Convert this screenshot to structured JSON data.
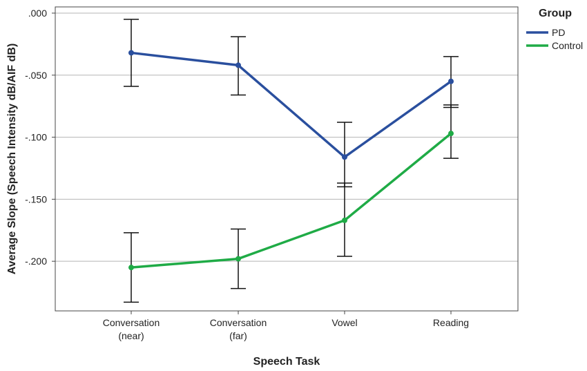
{
  "chart_data": {
    "type": "line",
    "title": "",
    "xlabel": "Speech Task",
    "ylabel": "Average Slope (Speech Intensity dB/AIF dB)",
    "categories": [
      [
        "Conversation",
        "(near)"
      ],
      [
        "Conversation",
        "(far)"
      ],
      [
        "Vowel"
      ],
      [
        "Reading"
      ]
    ],
    "ylim": [
      -0.24,
      0.005
    ],
    "yticks": [
      0.0,
      -0.05,
      -0.1,
      -0.15,
      -0.2
    ],
    "ytick_labels": [
      ".000",
      "-.050",
      "-.100",
      "-.150",
      "-.200"
    ],
    "grid": "horizontal",
    "legend": {
      "title": "Group",
      "placement": "top-right"
    },
    "series": [
      {
        "name": "PD",
        "color": "#2a4f9e",
        "values": [
          -0.032,
          -0.042,
          -0.116,
          -0.055
        ],
        "error_low": [
          -0.059,
          -0.066,
          -0.14,
          -0.076
        ],
        "error_high": [
          -0.005,
          -0.019,
          -0.088,
          -0.035
        ]
      },
      {
        "name": "Control",
        "color": "#1fab46",
        "values": [
          -0.205,
          -0.198,
          -0.167,
          -0.097
        ],
        "error_low": [
          -0.233,
          -0.222,
          -0.196,
          -0.117
        ],
        "error_high": [
          -0.177,
          -0.174,
          -0.137,
          -0.074
        ]
      }
    ]
  }
}
